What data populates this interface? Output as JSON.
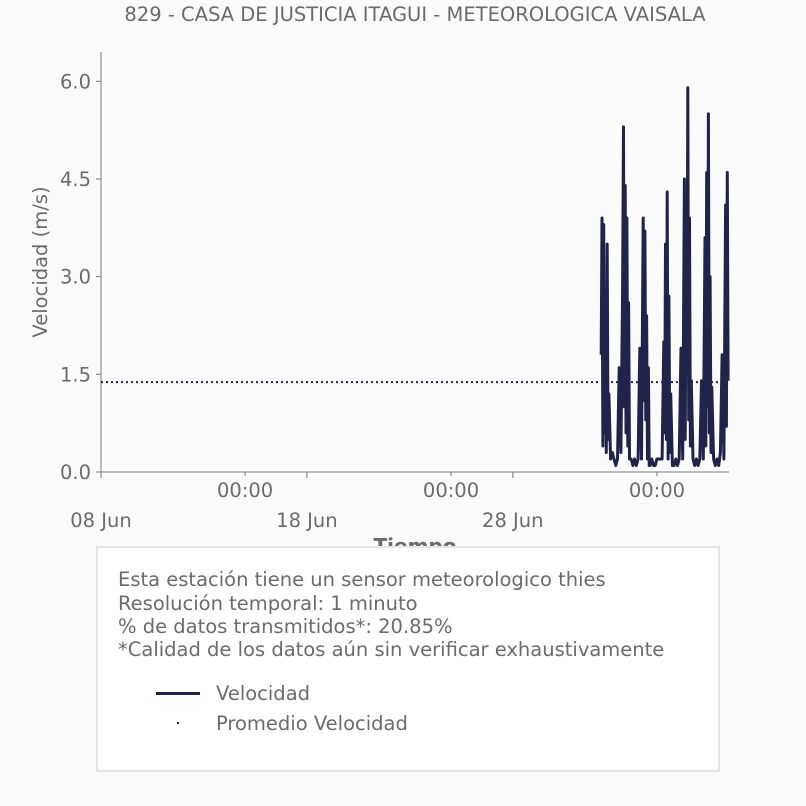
{
  "chart_data": {
    "type": "line",
    "title": "829 - CASA DE JUSTICIA ITAGUI - METEOROLOGICA VAISALA",
    "xlabel": "Tiempo",
    "ylabel": "Velocidad (m/s)",
    "ylim": [
      0,
      6.45
    ],
    "xlim": [
      "2024-06-08T00:00",
      "2024-07-08T12:00"
    ],
    "yticks": [
      "0.0",
      "1.5",
      "3.0",
      "4.5",
      "6.0"
    ],
    "xticks_major": [
      {
        "time": "2024-06-08T00:00",
        "label": "08 Jun"
      },
      {
        "time": "2024-06-18T00:00",
        "label": "18 Jun"
      },
      {
        "time": "2024-06-28T00:00",
        "label": "28 Jun"
      }
    ],
    "xticks_minor": [
      {
        "time": "2024-06-15T00:00",
        "label": "00:00"
      },
      {
        "time": "2024-06-25T00:00",
        "label": "00:00"
      },
      {
        "time": "2024-07-05T00:00",
        "label": "00:00"
      },
      {
        "time": "2024-07-15T00:00",
        "label": "00:00"
      },
      {
        "time": "2024-07-25T00:00",
        "label": "00:00"
      }
    ],
    "grid": false,
    "series": [
      {
        "name": "Velocidad",
        "color": "#20234a",
        "style": "solid",
        "x": [
          "2024-07-02T07:00",
          "2024-07-02T08:00",
          "2024-07-02T09:00",
          "2024-07-02T10:00",
          "2024-07-02T11:00",
          "2024-07-02T12:00",
          "2024-07-02T13:00",
          "2024-07-02T14:00",
          "2024-07-02T15:00",
          "2024-07-02T16:00",
          "2024-07-02T18:00",
          "2024-07-02T20:00",
          "2024-07-02T22:00",
          "2024-07-03T00:00",
          "2024-07-03T02:00",
          "2024-07-03T04:00",
          "2024-07-03T06:00",
          "2024-07-03T08:00",
          "2024-07-03T09:00",
          "2024-07-03T10:00",
          "2024-07-03T11:00",
          "2024-07-03T12:00",
          "2024-07-03T13:00",
          "2024-07-03T14:00",
          "2024-07-03T15:00",
          "2024-07-03T16:00",
          "2024-07-03T18:00",
          "2024-07-03T20:00",
          "2024-07-03T22:00",
          "2024-07-04T00:00",
          "2024-07-04T02:00",
          "2024-07-04T04:00",
          "2024-07-04T06:00",
          "2024-07-04T08:00",
          "2024-07-04T09:00",
          "2024-07-04T10:00",
          "2024-07-04T11:00",
          "2024-07-04T12:00",
          "2024-07-04T13:00",
          "2024-07-04T14:00",
          "2024-07-04T15:00",
          "2024-07-04T16:00",
          "2024-07-04T18:00",
          "2024-07-04T20:00",
          "2024-07-04T22:00",
          "2024-07-05T00:00",
          "2024-07-05T02:00",
          "2024-07-05T04:00",
          "2024-07-05T06:00",
          "2024-07-05T08:00",
          "2024-07-05T09:00",
          "2024-07-05T10:00",
          "2024-07-05T11:00",
          "2024-07-05T12:00",
          "2024-07-05T13:00",
          "2024-07-05T14:00",
          "2024-07-05T15:00",
          "2024-07-05T16:00",
          "2024-07-05T18:00",
          "2024-07-05T20:00",
          "2024-07-05T22:00",
          "2024-07-06T00:00",
          "2024-07-06T02:00",
          "2024-07-06T04:00",
          "2024-07-06T06:00",
          "2024-07-06T08:00",
          "2024-07-06T09:00",
          "2024-07-06T10:00",
          "2024-07-06T11:00",
          "2024-07-06T12:00",
          "2024-07-06T13:00",
          "2024-07-06T14:00",
          "2024-07-06T15:00",
          "2024-07-06T16:00",
          "2024-07-06T18:00",
          "2024-07-06T20:00",
          "2024-07-06T22:00",
          "2024-07-07T00:00",
          "2024-07-07T02:00",
          "2024-07-07T04:00",
          "2024-07-07T06:00",
          "2024-07-07T08:00",
          "2024-07-07T09:00",
          "2024-07-07T10:00",
          "2024-07-07T11:00",
          "2024-07-07T12:00",
          "2024-07-07T13:00",
          "2024-07-07T14:00",
          "2024-07-07T15:00",
          "2024-07-07T16:00",
          "2024-07-07T18:00",
          "2024-07-07T20:00",
          "2024-07-07T22:00",
          "2024-07-08T00:00",
          "2024-07-08T02:00",
          "2024-07-08T04:00",
          "2024-07-08T06:00",
          "2024-07-08T08:00",
          "2024-07-08T09:00",
          "2024-07-08T10:00",
          "2024-07-08T11:00"
        ],
        "values": [
          1.8,
          3.9,
          0.4,
          3.8,
          0.6,
          2.2,
          0.3,
          3.5,
          0.5,
          1.2,
          0.2,
          0.3,
          0.2,
          0.1,
          0.2,
          1.6,
          0.3,
          2.8,
          5.3,
          1.0,
          4.4,
          0.6,
          3.9,
          0.4,
          2.6,
          0.2,
          0.2,
          0.1,
          0.2,
          0.1,
          0.2,
          1.9,
          0.2,
          3.9,
          1.1,
          3.7,
          0.8,
          2.4,
          0.2,
          1.6,
          0.1,
          0.1,
          0.2,
          0.1,
          0.1,
          0.2,
          0.2,
          0.2,
          0.2,
          2.0,
          0.6,
          3.5,
          0.5,
          4.3,
          0.2,
          2.7,
          0.3,
          1.2,
          0.1,
          0.1,
          0.2,
          0.1,
          0.2,
          1.9,
          0.2,
          4.5,
          0.5,
          3.2,
          1.5,
          5.9,
          0.8,
          3.9,
          0.4,
          1.4,
          0.2,
          0.1,
          0.2,
          0.1,
          0.2,
          1.4,
          0.2,
          3.6,
          0.4,
          4.6,
          1.0,
          5.5,
          0.6,
          3.0,
          0.3,
          1.3,
          0.2,
          0.1,
          0.2,
          0.1,
          0.3,
          1.8,
          0.2,
          4.1,
          0.7,
          4.6,
          1.4
        ]
      },
      {
        "name": "Promedio Velocidad",
        "color": "#20234a",
        "style": "dotted",
        "x": [
          "2024-06-08T00:00",
          "2024-07-08T12:00"
        ],
        "values": [
          1.38,
          1.38
        ]
      }
    ],
    "legend_placement": "below"
  },
  "info": {
    "lines": [
      "Esta estación tiene un sensor meteorologico thies",
      "Resolución temporal: 1 minuto",
      "% de datos transmitidos*: 20.85%",
      "*Calidad de los datos aún sin verificar exhaustivamente"
    ]
  },
  "legend": {
    "items": [
      {
        "label": "Velocidad",
        "marker": "line",
        "color": "#20234a"
      },
      {
        "label": "Promedio Velocidad",
        "marker": "dot",
        "color": "#20234a"
      }
    ]
  }
}
